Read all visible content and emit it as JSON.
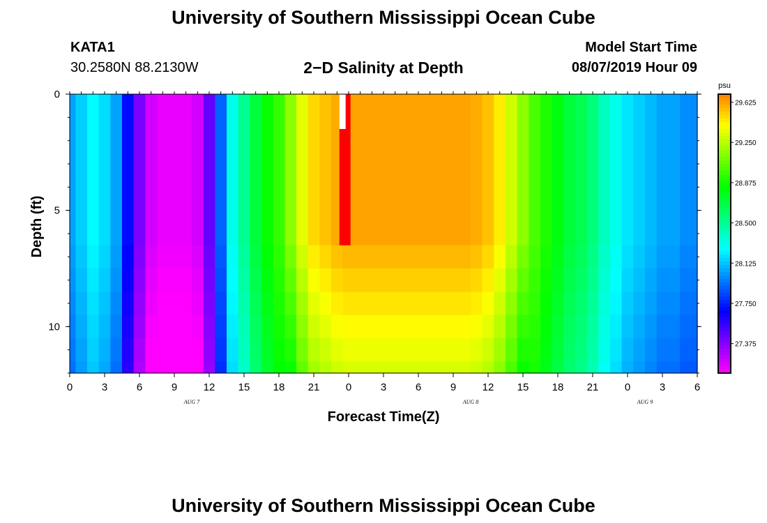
{
  "header": {
    "title": "University of Southern Mississippi Ocean Cube",
    "station_id": "KATA1",
    "coords": "30.2580N 88.2130W",
    "plot_title": "2−D Salinity at Depth",
    "model_start_label": "Model Start Time",
    "model_start_value": "08/07/2019 Hour 09"
  },
  "footer": {
    "title": "University of Southern Mississippi Ocean Cube"
  },
  "chart_data": {
    "type": "heatmap",
    "title": "2−D Salinity at Depth",
    "xlabel": "Forecast Time(Z)",
    "ylabel": "Depth (ft)",
    "x_tick_labels": [
      "0",
      "3",
      "6",
      "9",
      "12",
      "15",
      "18",
      "21",
      "0",
      "3",
      "6",
      "9",
      "12",
      "15",
      "18",
      "21",
      "0",
      "3",
      "6"
    ],
    "date_labels": [
      {
        "label": "AUG 7",
        "tick_index": 3.5
      },
      {
        "label": "AUG 8",
        "tick_index": 11.5
      },
      {
        "label": "AUG 9",
        "tick_index": 16.5
      }
    ],
    "xlim_hours": [
      0,
      54
    ],
    "now_marker_hour": 23.5,
    "y_ticks": [
      "0",
      "5",
      "10"
    ],
    "ylim_ft": [
      0,
      12
    ],
    "colorbar": {
      "unit": "psu",
      "ticks": [
        "29.625",
        "29.250",
        "28.875",
        "28.500",
        "28.125",
        "27.750",
        "27.375"
      ],
      "range": [
        27.1,
        29.7
      ]
    },
    "depth_levels_ft": [
      6.5,
      7.5,
      8.5,
      9.5,
      10.5,
      11.5,
      12
    ],
    "profile_hours": [
      0,
      1,
      2,
      3,
      4,
      5,
      6,
      7,
      8,
      9,
      10,
      11,
      12,
      13,
      14,
      15,
      16,
      17,
      18,
      19,
      20,
      21,
      22,
      23,
      24,
      25,
      26,
      27,
      28,
      29,
      30,
      31,
      32,
      33,
      34,
      35,
      36,
      37,
      38,
      39,
      40,
      41,
      42,
      43,
      44,
      45,
      46,
      47,
      48,
      49,
      50,
      51,
      52,
      53,
      54
    ],
    "surface_salinity_psu": [
      28.05,
      28.15,
      28.25,
      28.18,
      28.05,
      27.7,
      27.4,
      27.2,
      27.15,
      27.15,
      27.15,
      27.2,
      27.45,
      27.9,
      28.3,
      28.5,
      28.7,
      28.85,
      28.95,
      29.15,
      29.35,
      29.5,
      29.55,
      29.6,
      29.62,
      29.62,
      29.62,
      29.62,
      29.62,
      29.62,
      29.62,
      29.62,
      29.62,
      29.62,
      29.62,
      29.6,
      29.55,
      29.45,
      29.3,
      29.15,
      29.0,
      28.9,
      28.8,
      28.7,
      28.65,
      28.55,
      28.4,
      28.3,
      28.2,
      28.15,
      28.1,
      28.05,
      28.05,
      28.0,
      28.0
    ],
    "depth_offsets_psu": [
      0.0,
      -0.05,
      -0.1,
      -0.15,
      -0.2,
      -0.25,
      -0.3
    ]
  }
}
